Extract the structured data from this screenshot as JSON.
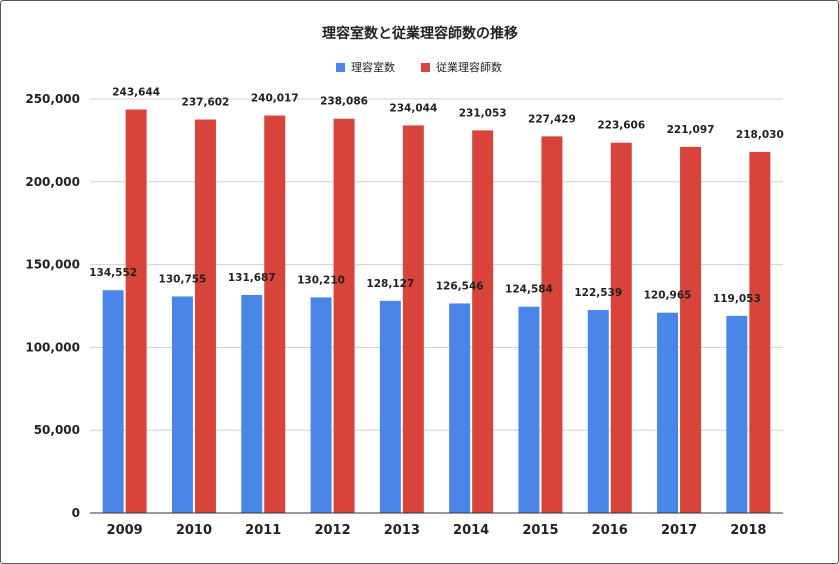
{
  "chart_data": {
    "type": "bar",
    "title": "理容室数と従業理容師数の推移",
    "categories": [
      "2009",
      "2010",
      "2011",
      "2012",
      "2013",
      "2014",
      "2015",
      "2016",
      "2017",
      "2018"
    ],
    "series": [
      {
        "name": "理容室数",
        "color": "#4a86e8",
        "values": [
          134552,
          130755,
          131687,
          130210,
          128127,
          126546,
          124584,
          122539,
          120965,
          119053
        ],
        "labels": [
          "134,552",
          "130,755",
          "131,687",
          "130,210",
          "128,127",
          "126,546",
          "124,584",
          "122,539",
          "120,965",
          "119,053"
        ]
      },
      {
        "name": "従業理容師数",
        "color": "#d9443a",
        "values": [
          243644,
          237602,
          240017,
          238086,
          234044,
          231053,
          227429,
          223606,
          221097,
          218030
        ],
        "labels": [
          "243,644",
          "237,602",
          "240,017",
          "238,086",
          "234,044",
          "231,053",
          "227,429",
          "223,606",
          "221,097",
          "218,030"
        ]
      }
    ],
    "ylim": [
      0,
      250000
    ],
    "yticks": [
      0,
      50000,
      100000,
      150000,
      200000,
      250000
    ],
    "ytick_labels": [
      "0",
      "50,000",
      "100,000",
      "150,000",
      "200,000",
      "250,000"
    ],
    "legend_position": "top-center",
    "grid": true
  }
}
